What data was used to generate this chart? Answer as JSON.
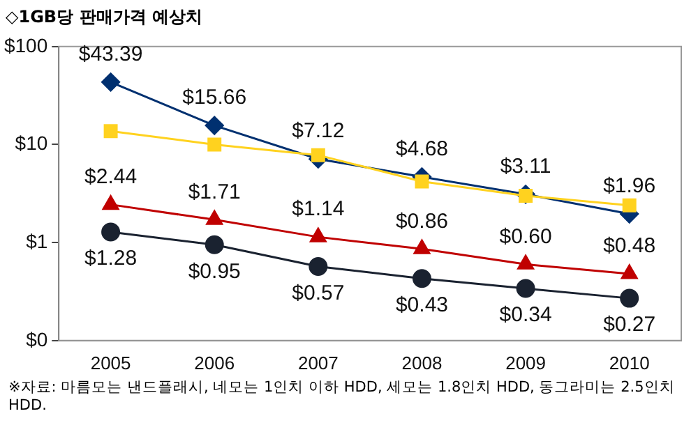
{
  "chart_data": {
    "type": "line",
    "title": "◇1GB당 판매가격 예상치",
    "categories": [
      "2005",
      "2006",
      "2007",
      "2008",
      "2009",
      "2010"
    ],
    "series": [
      {
        "color": "#003070",
        "marker": "diamond",
        "values": [
          43.39,
          15.66,
          7.12,
          4.68,
          3.11,
          1.96
        ],
        "value_labels": [
          "$43.39",
          "$15.66",
          "$7.12",
          "$4.68",
          "$3.11",
          "$1.96"
        ]
      },
      {
        "color": "#ffd21f",
        "marker": "square",
        "values": [
          13.7,
          10,
          7.8,
          4.2,
          3.0,
          2.4
        ]
      },
      {
        "color": "#c00000",
        "marker": "triangle",
        "values": [
          2.44,
          1.71,
          1.14,
          0.86,
          0.6,
          0.48
        ],
        "value_labels": [
          "$2.44",
          "$1.71",
          "$1.14",
          "$0.86",
          "$0.60",
          "$0.48"
        ]
      },
      {
        "color": "#1a2230",
        "marker": "circle",
        "values": [
          1.28,
          0.95,
          0.57,
          0.43,
          0.34,
          0.27
        ],
        "value_labels": [
          "$1.28",
          "$0.95",
          "$0.57",
          "$0.43",
          "$0.34",
          "$0.27"
        ]
      }
    ],
    "log": "y",
    "ylim": [
      0.1,
      100
    ],
    "yticks": [
      {
        "value": 0.1,
        "label": "$0"
      },
      {
        "value": 1,
        "label": "$1"
      },
      {
        "value": 10,
        "label": "$10"
      },
      {
        "value": 100,
        "label": "$100"
      }
    ],
    "grid": false,
    "legend": false,
    "annotations": [
      "※자료: 마름모는 낸드플래시, 네모는 1인치 이하 HDD, 세모는 1.8인치 HDD, 동그라미는 2.5인치 HDD."
    ]
  }
}
